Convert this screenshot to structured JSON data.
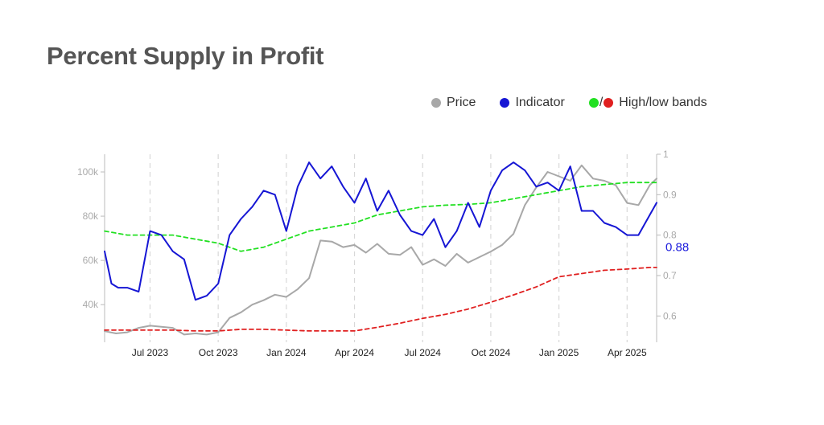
{
  "title": "Percent Supply in Profit",
  "legend": {
    "price": "Price",
    "indicator": "Indicator",
    "bands_sep": "/",
    "bands": "High/low bands"
  },
  "colors": {
    "price": "#a8a8a8",
    "indicator": "#1616d4",
    "high_band": "#22e022",
    "low_band": "#e02020",
    "grid": "#d8d8d8",
    "axis": "#bbbbbb"
  },
  "chart_data": {
    "type": "line",
    "title": "Percent Supply in Profit",
    "x_range": [
      "2023-05-01",
      "2025-05-10"
    ],
    "x_ticks": [
      "Jul 2023",
      "Oct 2023",
      "Jan 2024",
      "Apr 2024",
      "Jul 2024",
      "Oct 2024",
      "Jan 2025",
      "Apr 2025"
    ],
    "x_tick_months": [
      2,
      5,
      8,
      11,
      14,
      17,
      20,
      23
    ],
    "x_max_months": 24.3,
    "y_left": {
      "label": "Price",
      "range": [
        23000,
        108000
      ],
      "ticks": [
        40000,
        60000,
        80000,
        100000
      ],
      "tick_labels": [
        "40k",
        "60k",
        "80k",
        "100k"
      ]
    },
    "y_right": {
      "label": "Indicator",
      "range": [
        0.535,
        1.0
      ],
      "ticks": [
        0.6,
        0.7,
        0.8,
        0.9,
        1.0
      ],
      "tick_labels": [
        "0.6",
        "0.7",
        "0.8",
        "0.9",
        "1"
      ]
    },
    "last_value_label": "0.88",
    "series": [
      {
        "name": "Price",
        "axis": "left",
        "x": [
          0,
          0.5,
          1,
          1.5,
          2,
          2.5,
          3,
          3.5,
          4,
          4.5,
          5,
          5.5,
          6,
          6.5,
          7,
          7.5,
          8,
          8.5,
          9,
          9.5,
          10,
          10.5,
          11,
          11.5,
          12,
          12.5,
          13,
          13.5,
          14,
          14.5,
          15,
          15.5,
          16,
          16.5,
          17,
          17.5,
          18,
          18.5,
          19,
          19.5,
          20,
          20.5,
          21,
          21.5,
          22,
          22.5,
          23,
          23.5,
          24,
          24.3
        ],
        "y": [
          28000,
          27000,
          27500,
          29500,
          30500,
          30000,
          29500,
          26500,
          27000,
          26500,
          27500,
          34000,
          36500,
          40000,
          42000,
          44500,
          43500,
          47000,
          52000,
          69000,
          68500,
          66000,
          67000,
          63500,
          67500,
          63000,
          62500,
          66000,
          58000,
          60500,
          57500,
          63000,
          59000,
          61500,
          64000,
          67000,
          72000,
          85000,
          93000,
          100000,
          98000,
          96000,
          103000,
          97000,
          96000,
          94000,
          86000,
          85000,
          94000,
          97000
        ]
      },
      {
        "name": "Indicator",
        "axis": "right",
        "x": [
          0,
          0.3,
          0.6,
          1,
          1.5,
          2,
          2.5,
          3,
          3.5,
          4,
          4.5,
          5,
          5.5,
          6,
          6.5,
          7,
          7.5,
          8,
          8.5,
          9,
          9.5,
          10,
          10.5,
          11,
          11.5,
          12,
          12.5,
          13,
          13.5,
          14,
          14.5,
          15,
          15.5,
          16,
          16.5,
          17,
          17.5,
          18,
          18.5,
          19,
          19.5,
          20,
          20.5,
          21,
          21.5,
          22,
          22.5,
          23,
          23.5,
          24,
          24.3
        ],
        "y": [
          0.76,
          0.68,
          0.67,
          0.67,
          0.66,
          0.81,
          0.8,
          0.76,
          0.74,
          0.64,
          0.65,
          0.68,
          0.8,
          0.84,
          0.87,
          0.91,
          0.9,
          0.81,
          0.92,
          0.98,
          0.94,
          0.97,
          0.92,
          0.88,
          0.94,
          0.86,
          0.91,
          0.85,
          0.81,
          0.8,
          0.84,
          0.77,
          0.81,
          0.88,
          0.82,
          0.91,
          0.96,
          0.98,
          0.96,
          0.92,
          0.93,
          0.91,
          0.97,
          0.86,
          0.86,
          0.83,
          0.82,
          0.8,
          0.8,
          0.85,
          0.88
        ]
      },
      {
        "name": "High band",
        "axis": "right",
        "style": "dashed",
        "x": [
          0,
          1,
          2,
          3,
          4,
          5,
          6,
          7,
          8,
          9,
          10,
          11,
          12,
          13,
          14,
          15,
          16,
          17,
          18,
          19,
          20,
          21,
          22,
          23,
          24,
          24.3
        ],
        "y": [
          0.81,
          0.8,
          0.8,
          0.8,
          0.79,
          0.78,
          0.76,
          0.77,
          0.79,
          0.81,
          0.82,
          0.83,
          0.85,
          0.86,
          0.87,
          0.874,
          0.876,
          0.88,
          0.89,
          0.9,
          0.91,
          0.92,
          0.925,
          0.93,
          0.93,
          0.93
        ]
      },
      {
        "name": "Low band",
        "axis": "right",
        "style": "dashed",
        "x": [
          0,
          1,
          2,
          3,
          4,
          5,
          6,
          7,
          8,
          9,
          10,
          11,
          12,
          13,
          14,
          15,
          16,
          17,
          18,
          19,
          20,
          21,
          22,
          23,
          24,
          24.3
        ],
        "y": [
          0.565,
          0.565,
          0.565,
          0.565,
          0.563,
          0.563,
          0.567,
          0.567,
          0.565,
          0.563,
          0.563,
          0.563,
          0.572,
          0.582,
          0.594,
          0.604,
          0.617,
          0.634,
          0.652,
          0.672,
          0.697,
          0.705,
          0.713,
          0.716,
          0.72,
          0.72
        ]
      }
    ]
  }
}
